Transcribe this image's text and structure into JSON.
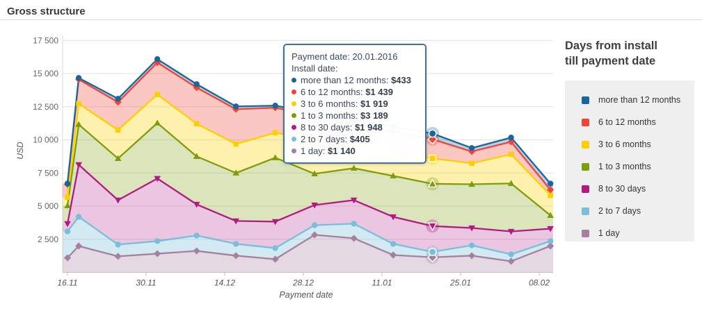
{
  "header": {
    "title": "Gross structure"
  },
  "y_axis": {
    "title": "USD",
    "tick_values": [
      2500,
      5000,
      7500,
      10000,
      12500,
      15000,
      17500
    ],
    "tick_labels": [
      "2 500",
      "5 000",
      "7 500",
      "10 000",
      "12 500",
      "15 000",
      "17 500"
    ]
  },
  "x_axis": {
    "title": "Payment date",
    "tick_days": [
      0,
      14,
      28,
      42,
      56,
      70,
      84
    ],
    "tick_labels": [
      "16.11",
      "30.11",
      "14.12",
      "28.12",
      "11.01",
      "25.01",
      "08.02"
    ]
  },
  "legend": {
    "title_line1": "Days from install",
    "title_line2": "till payment date",
    "items": [
      {
        "label": "more than 12 months",
        "color": "#17669e"
      },
      {
        "label": "6 to 12 months",
        "color": "#ef4437"
      },
      {
        "label": "3 to 6 months",
        "color": "#fccf00"
      },
      {
        "label": "1 to 3 months",
        "color": "#7e9d0b"
      },
      {
        "label": "8 to 30 days",
        "color": "#b01b82"
      },
      {
        "label": "2 to 7 days",
        "color": "#79bedb"
      },
      {
        "label": "1 day",
        "color": "#a5809f"
      }
    ]
  },
  "tooltip": {
    "title": "Payment date: 20.01.2016",
    "subtitle": "Install date:",
    "rows": [
      {
        "label": "more than 12 months:",
        "value": "$433",
        "color": "#17669e"
      },
      {
        "label": "6 to 12 months:",
        "value": "$1 439",
        "color": "#ef4437"
      },
      {
        "label": "3 to 6 months:",
        "value": "$1 919",
        "color": "#fccf00"
      },
      {
        "label": "1 to 3 months:",
        "value": "$3 189",
        "color": "#7e9d0b"
      },
      {
        "label": "8 to 30 days:",
        "value": "$1 948",
        "color": "#b01b82"
      },
      {
        "label": "2 to 7 days:",
        "value": "$405",
        "color": "#79bedb"
      },
      {
        "label": "1 day:",
        "value": "$1 140",
        "color": "#a5809f"
      }
    ]
  },
  "chart_data": {
    "type": "area",
    "stacked": true,
    "title": "Gross structure",
    "xlabel": "Payment date",
    "ylabel": "USD",
    "ylim": [
      0,
      17500
    ],
    "grid": "horizontal",
    "legend_position": "right",
    "x_dates": [
      "16.11",
      "18.11",
      "25.11",
      "02.12",
      "09.12",
      "16.12",
      "23.12",
      "30.12",
      "06.01",
      "13.01",
      "20.01",
      "27.01",
      "03.02",
      "08.02"
    ],
    "x_day_offsets": [
      0,
      2,
      9,
      16,
      23,
      30,
      37,
      44,
      51,
      58,
      65,
      72,
      79,
      86
    ],
    "highlight_index": 10,
    "highlight_date": "20.01.2016",
    "series": [
      {
        "name": "more than 12 months",
        "color": "#17669e",
        "marker": "circle",
        "fill_opacity": 0.3,
        "values": [
          50,
          110,
          260,
          260,
          260,
          210,
          160,
          220,
          300,
          360,
          433,
          260,
          320,
          470
        ]
      },
      {
        "name": "6 to 12 months",
        "color": "#ef4437",
        "marker": "diamond",
        "fill_opacity": 0.3,
        "values": [
          990,
          1830,
          2100,
          2410,
          2730,
          2620,
          1890,
          1780,
          1660,
          1550,
          1439,
          890,
          940,
          410
        ]
      },
      {
        "name": "3 to 6 months",
        "color": "#fccf00",
        "marker": "square",
        "fill_opacity": 0.32,
        "values": [
          630,
          1570,
          2150,
          2150,
          2460,
          2190,
          1880,
          2610,
          1710,
          1810,
          1919,
          1580,
          2200,
          1520
        ]
      },
      {
        "name": "1 to 3 months",
        "color": "#7e9d0b",
        "marker": "triangle-up",
        "fill_opacity": 0.28,
        "values": [
          1360,
          3040,
          3140,
          4190,
          3620,
          3620,
          4820,
          2360,
          2410,
          3090,
          3189,
          3300,
          3620,
          1000
        ]
      },
      {
        "name": "8 to 30 days",
        "color": "#b01b82",
        "marker": "triangle-down",
        "fill_opacity": 0.25,
        "values": [
          580,
          3930,
          3350,
          4720,
          2350,
          1730,
          2000,
          1520,
          1780,
          2040,
          1948,
          1310,
          1730,
          940
        ]
      },
      {
        "name": "2 to 7 days",
        "color": "#79bedb",
        "marker": "circle",
        "fill_opacity": 0.32,
        "values": [
          1990,
          2200,
          890,
          950,
          1160,
          890,
          835,
          730,
          1100,
          840,
          405,
          780,
          520,
          370
        ]
      },
      {
        "name": "1 day",
        "color": "#a5809f",
        "marker": "diamond",
        "fill_opacity": 0.3,
        "values": [
          1100,
          1990,
          1210,
          1410,
          1620,
          1260,
          995,
          2830,
          2570,
          1310,
          1140,
          1260,
          840,
          1990
        ]
      }
    ]
  }
}
